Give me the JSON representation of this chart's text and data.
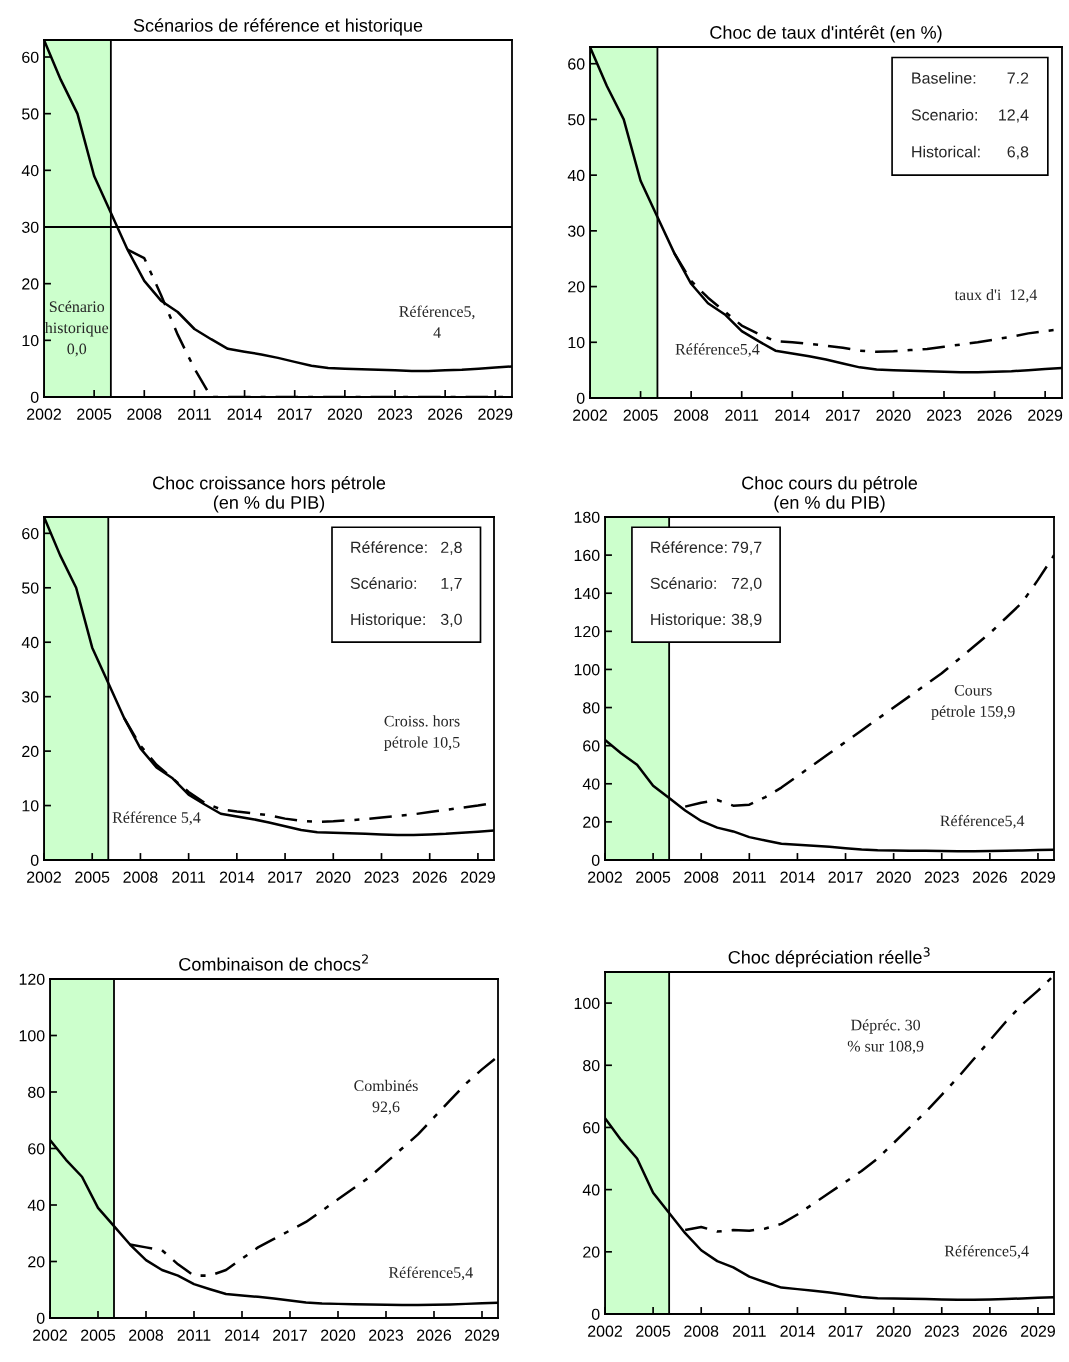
{
  "chart_data": [
    {
      "type": "line",
      "title": "Scénarios de référence et historique",
      "x": [
        2002,
        2003,
        2004,
        2005,
        2006,
        2007,
        2008,
        2009,
        2010,
        2011,
        2012,
        2013,
        2014,
        2015,
        2016,
        2017,
        2018,
        2019,
        2020,
        2021,
        2022,
        2023,
        2024,
        2025,
        2026,
        2027,
        2028,
        2029,
        2030
      ],
      "xlim": [
        2002,
        2030
      ],
      "xticks": [
        2002,
        2005,
        2008,
        2011,
        2014,
        2017,
        2020,
        2023,
        2026,
        2029
      ],
      "ylim": [
        0,
        63
      ],
      "yticks": [
        0,
        10,
        20,
        30,
        40,
        50,
        60
      ],
      "grid": false,
      "series": [
        {
          "color": "#000000",
          "line_style": "solid",
          "values": [
            63,
            56,
            50,
            39,
            32.5,
            26,
            20.5,
            17,
            15,
            12,
            10.2,
            8.5,
            8,
            7.5,
            6.9,
            6.2,
            5.5,
            5.1,
            5,
            4.9,
            4.8,
            4.7,
            4.6,
            4.6,
            4.7,
            4.8,
            5,
            5.2,
            5.4
          ]
        },
        {
          "color": "#000000",
          "line_style": "dashed",
          "x": [
            2007,
            2008,
            2009,
            2010,
            2011,
            2012,
            2013,
            2014,
            2015,
            2016,
            2017,
            2018,
            2019,
            2020,
            2021,
            2022,
            2023,
            2024,
            2025,
            2026,
            2027,
            2028,
            2029,
            2030
          ],
          "values": [
            26,
            24.5,
            18,
            11,
            5,
            0,
            0,
            0,
            0,
            0,
            0,
            0,
            0,
            0,
            0,
            0,
            0,
            0,
            0,
            0,
            0,
            0,
            0,
            0
          ]
        }
      ],
      "bands": [
        {
          "axis": "x",
          "from": 2002,
          "to": 2006,
          "color": "#ccffcc"
        }
      ],
      "ref_lines": [
        {
          "axis": "y",
          "value": 30,
          "color": "#000000"
        }
      ],
      "annotations": [
        "Scénario\nhistorique\n0,0",
        "Référence5,\n4"
      ]
    },
    {
      "type": "line",
      "title": "Choc de taux d'intérêt (en %)",
      "x": [
        2002,
        2003,
        2004,
        2005,
        2006,
        2007,
        2008,
        2009,
        2010,
        2011,
        2012,
        2013,
        2014,
        2015,
        2016,
        2017,
        2018,
        2019,
        2020,
        2021,
        2022,
        2023,
        2024,
        2025,
        2026,
        2027,
        2028,
        2029,
        2030
      ],
      "xlim": [
        2002,
        2030
      ],
      "xticks": [
        2002,
        2005,
        2008,
        2011,
        2014,
        2017,
        2020,
        2023,
        2026,
        2029
      ],
      "ylim": [
        0,
        63
      ],
      "yticks": [
        0,
        10,
        20,
        30,
        40,
        50,
        60
      ],
      "grid": false,
      "series": [
        {
          "color": "#000000",
          "line_style": "solid",
          "values": [
            63,
            56,
            50,
            39,
            32.5,
            26,
            20.5,
            17,
            15,
            12,
            10.2,
            8.5,
            8,
            7.5,
            6.9,
            6.2,
            5.5,
            5.1,
            5,
            4.9,
            4.8,
            4.7,
            4.6,
            4.6,
            4.7,
            4.8,
            5,
            5.2,
            5.4
          ]
        },
        {
          "color": "#000000",
          "line_style": "dashed",
          "x": [
            2007,
            2008,
            2009,
            2010,
            2011,
            2012,
            2013,
            2014,
            2015,
            2016,
            2017,
            2018,
            2019,
            2020,
            2021,
            2022,
            2023,
            2024,
            2025,
            2026,
            2027,
            2028,
            2029,
            2030
          ],
          "values": [
            26,
            21,
            18,
            15.5,
            13,
            11.5,
            10.2,
            10,
            9.7,
            9.4,
            9,
            8.5,
            8.3,
            8.4,
            8.6,
            8.8,
            9.2,
            9.6,
            10,
            10.5,
            11,
            11.6,
            12,
            12.4
          ]
        }
      ],
      "bands": [
        {
          "axis": "x",
          "from": 2002,
          "to": 2006,
          "color": "#ccffcc"
        }
      ],
      "annotations": [
        "Baseline:",
        "7.2",
        "Scenario:",
        "12,4",
        "Historical:",
        "6,8",
        "taux d'i  12,4",
        "Référence5,4"
      ]
    },
    {
      "type": "line",
      "title": "Choc croissance hors pétrole\n(en % du PIB)",
      "x": [
        2002,
        2003,
        2004,
        2005,
        2006,
        2007,
        2008,
        2009,
        2010,
        2011,
        2012,
        2013,
        2014,
        2015,
        2016,
        2017,
        2018,
        2019,
        2020,
        2021,
        2022,
        2023,
        2024,
        2025,
        2026,
        2027,
        2028,
        2029,
        2030
      ],
      "xlim": [
        2002,
        2030
      ],
      "xticks": [
        2002,
        2005,
        2008,
        2011,
        2014,
        2017,
        2020,
        2023,
        2026,
        2029
      ],
      "ylim": [
        0,
        63
      ],
      "yticks": [
        0,
        10,
        20,
        30,
        40,
        50,
        60
      ],
      "grid": false,
      "series": [
        {
          "color": "#000000",
          "line_style": "solid",
          "values": [
            63,
            56,
            50,
            39,
            32.5,
            26,
            20.5,
            17,
            15,
            12,
            10.2,
            8.5,
            8,
            7.5,
            6.9,
            6.2,
            5.5,
            5.1,
            5,
            4.9,
            4.8,
            4.7,
            4.6,
            4.6,
            4.7,
            4.8,
            5,
            5.2,
            5.4
          ]
        },
        {
          "color": "#000000",
          "line_style": "dashed",
          "x": [
            2007,
            2008,
            2009,
            2010,
            2011,
            2012,
            2013,
            2014,
            2015,
            2016,
            2017,
            2018,
            2019,
            2020,
            2021,
            2022,
            2023,
            2024,
            2025,
            2026,
            2027,
            2028,
            2029,
            2030
          ],
          "values": [
            26,
            21,
            17.5,
            15,
            12.5,
            10.5,
            9.3,
            8.9,
            8.6,
            8.2,
            7.6,
            7.2,
            7,
            7.1,
            7.3,
            7.5,
            7.8,
            8.1,
            8.4,
            8.8,
            9.2,
            9.6,
            10,
            10.5
          ]
        }
      ],
      "bands": [
        {
          "axis": "x",
          "from": 2002,
          "to": 2006,
          "color": "#ccffcc"
        }
      ],
      "annotations": [
        "Référence:",
        "2,8",
        "Scénario:",
        "1,7",
        "Historique:",
        "3,0",
        "Croiss. hors\npétrole 10,5",
        "Référence 5,4"
      ]
    },
    {
      "type": "line",
      "title": "Choc cours du pétrole\n(en % du PIB)",
      "x": [
        2002,
        2003,
        2004,
        2005,
        2006,
        2007,
        2008,
        2009,
        2010,
        2011,
        2012,
        2013,
        2014,
        2015,
        2016,
        2017,
        2018,
        2019,
        2020,
        2021,
        2022,
        2023,
        2024,
        2025,
        2026,
        2027,
        2028,
        2029,
        2030
      ],
      "xlim": [
        2002,
        2030
      ],
      "xticks": [
        2002,
        2005,
        2008,
        2011,
        2014,
        2017,
        2020,
        2023,
        2026,
        2029
      ],
      "ylim": [
        0,
        180
      ],
      "yticks": [
        0,
        20,
        40,
        60,
        80,
        100,
        120,
        140,
        160,
        180
      ],
      "grid": false,
      "series": [
        {
          "color": "#000000",
          "line_style": "solid",
          "values": [
            63,
            56,
            50,
            39,
            32.5,
            26,
            20.5,
            17,
            15,
            12,
            10.2,
            8.5,
            8,
            7.5,
            6.9,
            6.2,
            5.5,
            5.1,
            5,
            4.9,
            4.8,
            4.7,
            4.6,
            4.6,
            4.7,
            4.8,
            5,
            5.2,
            5.4
          ]
        },
        {
          "color": "#000000",
          "line_style": "dashed",
          "x": [
            2007,
            2008,
            2009,
            2010,
            2011,
            2012,
            2013,
            2014,
            2015,
            2016,
            2017,
            2018,
            2019,
            2020,
            2021,
            2022,
            2023,
            2024,
            2025,
            2026,
            2027,
            2028,
            2029,
            2030
          ],
          "values": [
            28,
            30,
            31.5,
            28.5,
            29,
            33,
            38,
            44,
            50,
            56,
            62,
            68,
            74,
            80,
            86,
            92,
            98,
            105,
            112,
            119,
            127,
            135,
            147,
            159.9
          ]
        }
      ],
      "bands": [
        {
          "axis": "x",
          "from": 2002,
          "to": 2006,
          "color": "#ccffcc"
        }
      ],
      "annotations": [
        "Référence:",
        "79,7",
        "Scénario:",
        "72,0",
        "Historique:",
        "38,9",
        "Cours\npétrole 159,9",
        "Référence5,4"
      ]
    },
    {
      "type": "line",
      "title": "Combinaison de chocs$^{2}$",
      "x": [
        2002,
        2003,
        2004,
        2005,
        2006,
        2007,
        2008,
        2009,
        2010,
        2011,
        2012,
        2013,
        2014,
        2015,
        2016,
        2017,
        2018,
        2019,
        2020,
        2021,
        2022,
        2023,
        2024,
        2025,
        2026,
        2027,
        2028,
        2029,
        2030
      ],
      "xlim": [
        2002,
        2030
      ],
      "xticks": [
        2002,
        2005,
        2008,
        2011,
        2014,
        2017,
        2020,
        2023,
        2026,
        2029
      ],
      "ylim": [
        0,
        120
      ],
      "yticks": [
        0,
        20,
        40,
        60,
        80,
        100,
        120
      ],
      "grid": false,
      "series": [
        {
          "color": "#000000",
          "line_style": "solid",
          "values": [
            63,
            56,
            50,
            39,
            32.5,
            26,
            20.5,
            17,
            15,
            12,
            10.2,
            8.5,
            8,
            7.5,
            6.9,
            6.2,
            5.5,
            5.1,
            5,
            4.9,
            4.8,
            4.7,
            4.6,
            4.6,
            4.7,
            4.8,
            5,
            5.2,
            5.4
          ]
        },
        {
          "color": "#000000",
          "line_style": "dashed",
          "x": [
            2007,
            2008,
            2009,
            2010,
            2011,
            2012,
            2013,
            2014,
            2015,
            2016,
            2017,
            2018,
            2019,
            2020,
            2021,
            2022,
            2023,
            2024,
            2025,
            2026,
            2027,
            2028,
            2029,
            2030
          ],
          "values": [
            26,
            25,
            24,
            19,
            15,
            15,
            17,
            21,
            25,
            28,
            31,
            34,
            38,
            42,
            46,
            50,
            55,
            60,
            65,
            71,
            77,
            83,
            88,
            92.6
          ]
        }
      ],
      "bands": [
        {
          "axis": "x",
          "from": 2002,
          "to": 2006,
          "color": "#ccffcc"
        }
      ],
      "annotations": [
        "Combinés\n92,6",
        "Référence5,4"
      ]
    },
    {
      "type": "line",
      "title": "Choc dépréciation réelle$^{3}$",
      "x": [
        2002,
        2003,
        2004,
        2005,
        2006,
        2007,
        2008,
        2009,
        2010,
        2011,
        2012,
        2013,
        2014,
        2015,
        2016,
        2017,
        2018,
        2019,
        2020,
        2021,
        2022,
        2023,
        2024,
        2025,
        2026,
        2027,
        2028,
        2029,
        2030
      ],
      "xlim": [
        2002,
        2030
      ],
      "xticks": [
        2002,
        2005,
        2008,
        2011,
        2014,
        2017,
        2020,
        2023,
        2026,
        2029
      ],
      "ylim": [
        0,
        110
      ],
      "yticks": [
        0,
        20,
        40,
        60,
        80,
        100
      ],
      "grid": false,
      "series": [
        {
          "color": "#000000",
          "line_style": "solid",
          "values": [
            63,
            56,
            50,
            39,
            32.5,
            26,
            20.5,
            17,
            15,
            12,
            10.2,
            8.5,
            8,
            7.5,
            6.9,
            6.2,
            5.5,
            5.1,
            5,
            4.9,
            4.8,
            4.7,
            4.6,
            4.6,
            4.7,
            4.8,
            5,
            5.2,
            5.4
          ]
        },
        {
          "color": "#000000",
          "line_style": "dashed",
          "x": [
            2007,
            2008,
            2009,
            2010,
            2011,
            2012,
            2013,
            2014,
            2015,
            2016,
            2017,
            2018,
            2019,
            2020,
            2021,
            2022,
            2023,
            2024,
            2025,
            2026,
            2027,
            2028,
            2029,
            2030
          ],
          "values": [
            27,
            28,
            26.5,
            27,
            26.8,
            27.5,
            29,
            32,
            35.5,
            39,
            42.5,
            46,
            50,
            55,
            60,
            65,
            70.5,
            76,
            82,
            88,
            94,
            99.5,
            104,
            108.9
          ]
        }
      ],
      "bands": [
        {
          "axis": "x",
          "from": 2002,
          "to": 2006,
          "color": "#ccffcc"
        }
      ],
      "annotations": [
        "Dépréc. 30\n% sur 108,9",
        "Référence5,4"
      ]
    }
  ]
}
